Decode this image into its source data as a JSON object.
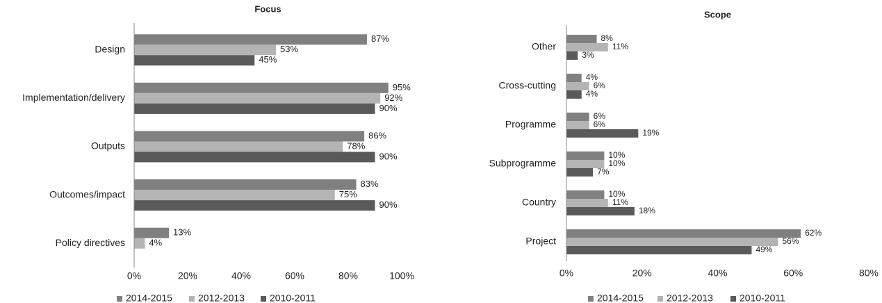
{
  "chart_data": [
    {
      "type": "bar",
      "orientation": "horizontal",
      "title": "Focus",
      "categories": [
        "Design",
        "Implementation/delivery",
        "Outputs",
        "Outcomes/impact",
        "Policy directives"
      ],
      "series": [
        {
          "name": "2014-2015",
          "color": "#808080",
          "values": [
            87,
            95,
            86,
            83,
            13
          ],
          "value_labels": [
            "87%",
            "95%",
            "86%",
            "83%",
            "13%"
          ]
        },
        {
          "name": "2012-2013",
          "color": "#b4b4b4",
          "values": [
            53,
            92,
            78,
            75,
            4
          ],
          "value_labels": [
            "53%",
            "92%",
            "78%",
            "75%",
            "4%"
          ]
        },
        {
          "name": "2010-2011",
          "color": "#5a5a5a",
          "values": [
            45,
            90,
            90,
            90,
            null
          ],
          "value_labels": [
            "45%",
            "90%",
            "90%",
            "90%",
            null
          ]
        }
      ],
      "xlim": [
        0,
        100
      ],
      "xticks": [
        {
          "value": 0,
          "label": "0%"
        },
        {
          "value": 20,
          "label": "20%"
        },
        {
          "value": 40,
          "label": "40%"
        },
        {
          "value": 60,
          "label": "60%"
        },
        {
          "value": 80,
          "label": "80%"
        },
        {
          "value": 100,
          "label": "100%"
        }
      ],
      "legend": "bottom"
    },
    {
      "type": "bar",
      "orientation": "horizontal",
      "title": "Scope",
      "categories": [
        "Other",
        "Cross-cutting",
        "Programme",
        "Subprogramme",
        "Country",
        "Project"
      ],
      "series": [
        {
          "name": "2014-2015",
          "color": "#808080",
          "values": [
            8,
            4,
            6,
            10,
            10,
            62
          ],
          "value_labels": [
            "8%",
            "4%",
            "6%",
            "10%",
            "10%",
            "62%"
          ]
        },
        {
          "name": "2012-2013",
          "color": "#b4b4b4",
          "values": [
            11,
            6,
            6,
            10,
            11,
            56
          ],
          "value_labels": [
            "11%",
            "6%",
            "6%",
            "10%",
            "11%",
            "56%"
          ]
        },
        {
          "name": "2010-2011",
          "color": "#5a5a5a",
          "values": [
            3,
            4,
            19,
            7,
            18,
            49
          ],
          "value_labels": [
            "3%",
            "4%",
            "19%",
            "7%",
            "18%",
            "49%"
          ]
        }
      ],
      "xlim": [
        0,
        80
      ],
      "xticks": [
        {
          "value": 0,
          "label": "0%"
        },
        {
          "value": 20,
          "label": "20%"
        },
        {
          "value": 40,
          "label": "40%"
        },
        {
          "value": 60,
          "label": "60%"
        },
        {
          "value": 80,
          "label": "80%"
        }
      ],
      "legend": "bottom"
    }
  ]
}
